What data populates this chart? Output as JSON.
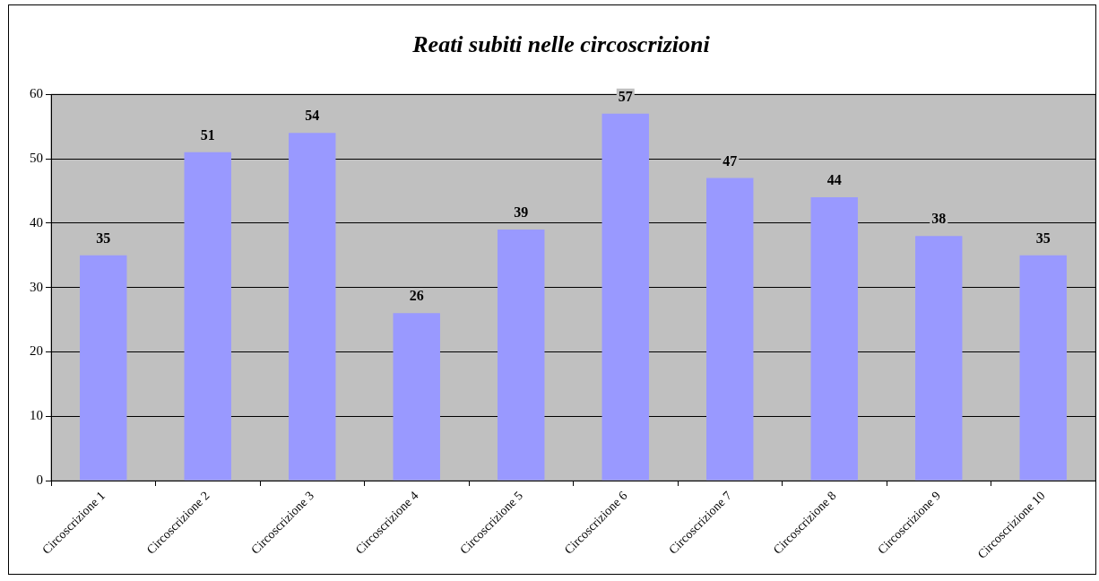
{
  "chart_data": {
    "type": "bar",
    "title": "Reati subiti nelle circoscrizioni",
    "categories": [
      "Circoscrizione 1",
      "Circoscrizione 2",
      "Circoscrizione 3",
      "Circoscrizione 4",
      "Circoscrizione 5",
      "Circoscrizione 6",
      "Circoscrizione 7",
      "Circoscrizione 8",
      "Circoscrizione 9",
      "Circoscrizione 10"
    ],
    "values": [
      35,
      51,
      54,
      26,
      39,
      57,
      47,
      44,
      38,
      35
    ],
    "color": "#9999ff",
    "ylim": [
      0,
      60
    ],
    "yticks": [
      0,
      10,
      20,
      30,
      40,
      50,
      60
    ],
    "grid": "y",
    "data_labels": true
  }
}
